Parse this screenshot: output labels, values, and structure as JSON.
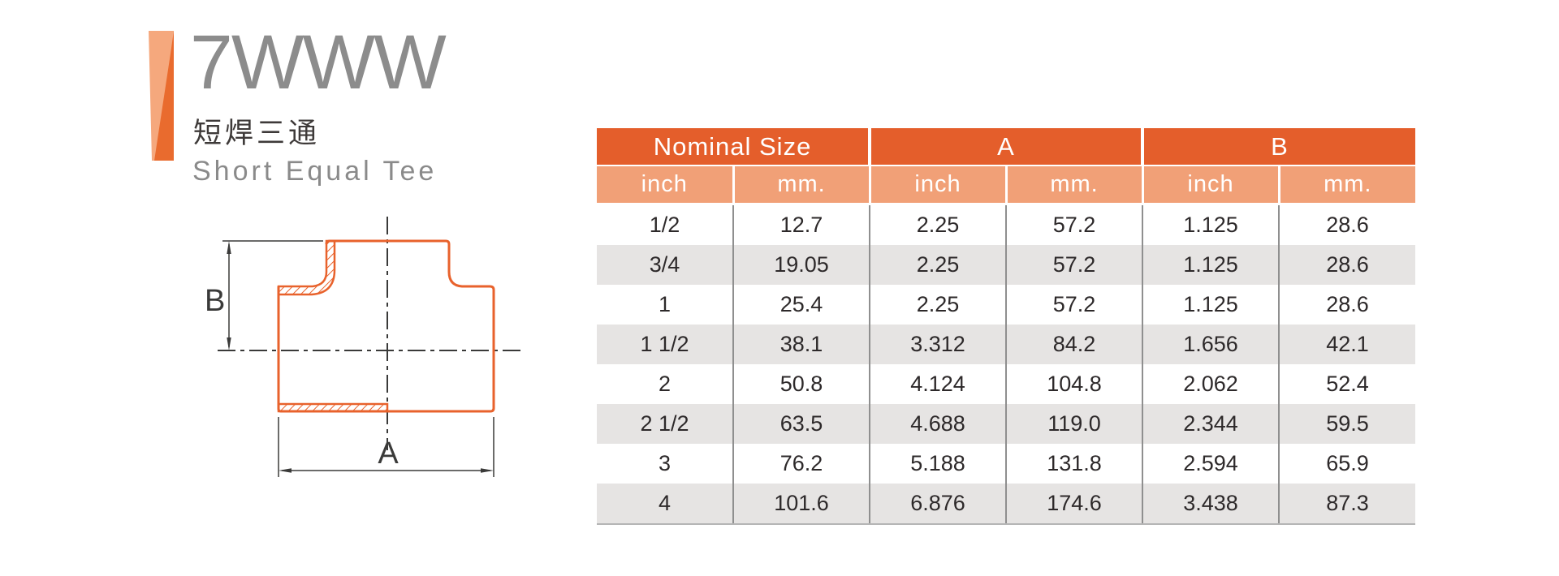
{
  "header": {
    "model": "7WWW",
    "title_zh": "短焊三通",
    "title_en": "Short Equal Tee"
  },
  "diagram": {
    "label_a": "A",
    "label_b": "B"
  },
  "table": {
    "groups": [
      "Nominal Size",
      "A",
      "B"
    ],
    "subheads": [
      "inch",
      "mm.",
      "inch",
      "mm.",
      "inch",
      "mm."
    ],
    "rows": [
      [
        "1/2",
        "12.7",
        "2.25",
        "57.2",
        "1.125",
        "28.6"
      ],
      [
        "3/4",
        "19.05",
        "2.25",
        "57.2",
        "1.125",
        "28.6"
      ],
      [
        "1",
        "25.4",
        "2.25",
        "57.2",
        "1.125",
        "28.6"
      ],
      [
        "1 1/2",
        "38.1",
        "3.312",
        "84.2",
        "1.656",
        "42.1"
      ],
      [
        "2",
        "50.8",
        "4.124",
        "104.8",
        "2.062",
        "52.4"
      ],
      [
        "2 1/2",
        "63.5",
        "4.688",
        "119.0",
        "2.344",
        "59.5"
      ],
      [
        "3",
        "76.2",
        "5.188",
        "131.8",
        "2.594",
        "65.9"
      ],
      [
        "4",
        "101.6",
        "6.876",
        "174.6",
        "3.438",
        "87.3"
      ]
    ]
  },
  "colors": {
    "header_orange": "#E45E2B",
    "subheader_orange": "#F1A077",
    "row_alt_gray": "#E6E4E3",
    "drawing_orange": "#E8622C",
    "accent_light": "#F5A87D",
    "accent_dark": "#E96B2E",
    "title_gray": "#8c8c8c",
    "text_dark": "#2d292a"
  }
}
